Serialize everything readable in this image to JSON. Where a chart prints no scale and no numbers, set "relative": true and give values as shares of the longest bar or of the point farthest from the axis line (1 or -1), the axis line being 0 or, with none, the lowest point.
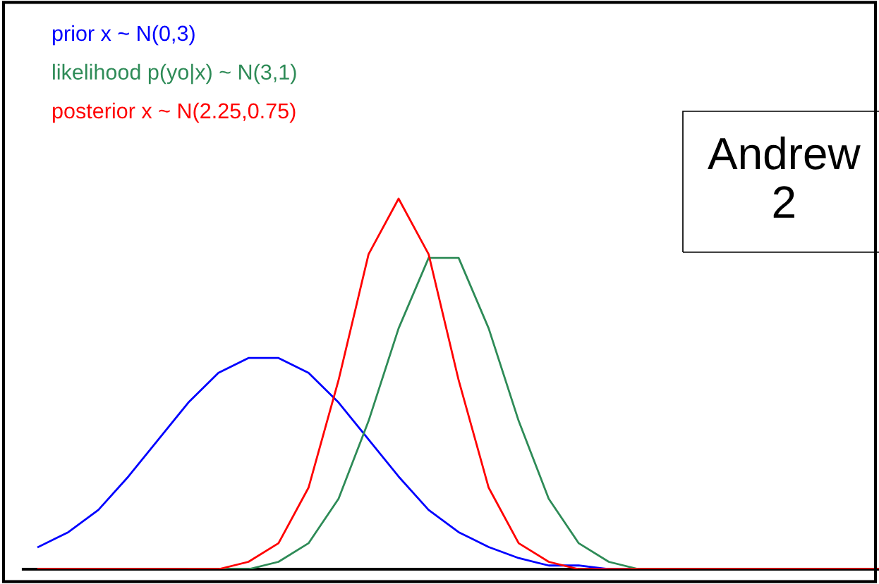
{
  "chart_data": {
    "type": "line",
    "relative": true,
    "categories": [
      null,
      null,
      null,
      null,
      null,
      null,
      null,
      null,
      null,
      null,
      null,
      null,
      null,
      null,
      null,
      null,
      null,
      null,
      null,
      null,
      null,
      null,
      null,
      null,
      null,
      null,
      null,
      null,
      null
    ],
    "series": [
      {
        "name": "prior x ~ N(0,3)",
        "color": "#0000ff",
        "values": [
          0.06,
          0.1,
          0.16,
          0.25,
          0.35,
          0.45,
          0.53,
          0.57,
          0.57,
          0.53,
          0.45,
          0.35,
          0.25,
          0.16,
          0.1,
          0.06,
          0.03,
          0.01,
          0.01,
          0,
          0,
          null,
          null,
          null,
          null,
          null,
          null,
          null,
          null
        ]
      },
      {
        "name": "likelihood p(yo|x) ~ N(3,1)",
        "color": "#2e8b57",
        "values": [
          null,
          null,
          null,
          null,
          null,
          0,
          0,
          0,
          0.02,
          0.07,
          0.19,
          0.4,
          0.65,
          0.84,
          0.84,
          0.65,
          0.4,
          0.19,
          0.07,
          0.02,
          0,
          0,
          null,
          null,
          null,
          null,
          null,
          null,
          null
        ]
      },
      {
        "name": "posterior x ~ N(2.25,0.75)",
        "color": "#ff0000",
        "values": [
          0,
          0,
          0,
          0,
          0,
          0,
          0,
          0.02,
          0.07,
          0.22,
          0.51,
          0.85,
          1,
          0.85,
          0.51,
          0.22,
          0.07,
          0.02,
          0,
          0,
          0,
          0,
          0,
          0,
          0,
          0,
          0,
          0,
          0
        ]
      }
    ],
    "annotations": [
      "Andrew\n2"
    ],
    "grid": false,
    "legend": false,
    "marker": "none",
    "line_style": "solid"
  }
}
